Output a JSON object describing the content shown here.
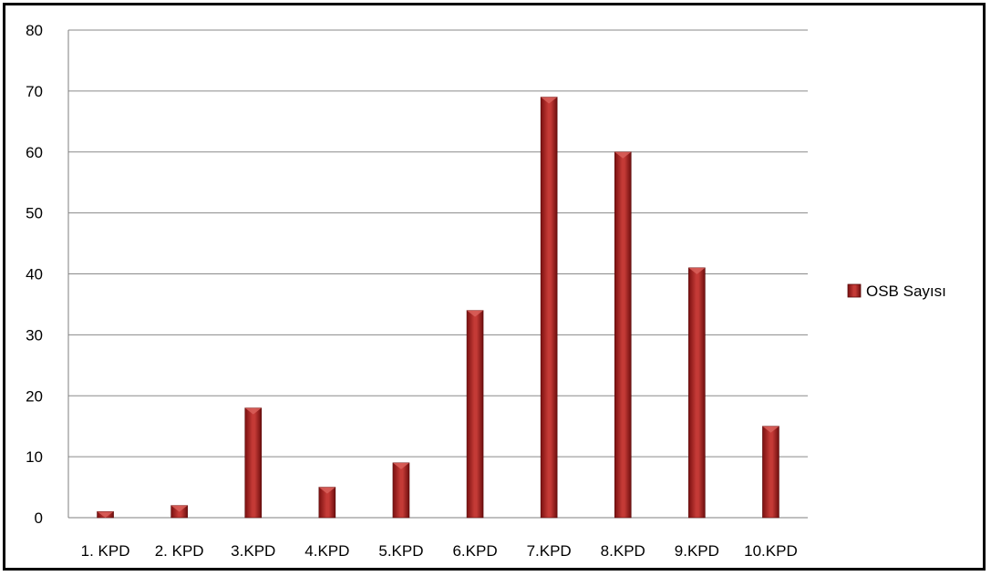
{
  "chart_data": {
    "type": "bar",
    "categories": [
      "1. KPD",
      "2. KPD",
      "3.KPD",
      "4.KPD",
      "5.KPD",
      "6.KPD",
      "7.KPD",
      "8.KPD",
      "9.KPD",
      "10.KPD"
    ],
    "series": [
      {
        "name": "OSB Sayısı",
        "values": [
          1,
          2,
          18,
          5,
          9,
          34,
          69,
          60,
          41,
          15
        ],
        "color": "#b22222"
      }
    ],
    "ylim": [
      0,
      80
    ],
    "yticks": [
      "0",
      "10",
      "20",
      "30",
      "40",
      "50",
      "60",
      "70",
      "80"
    ],
    "grid": true,
    "legend_position": "right"
  }
}
